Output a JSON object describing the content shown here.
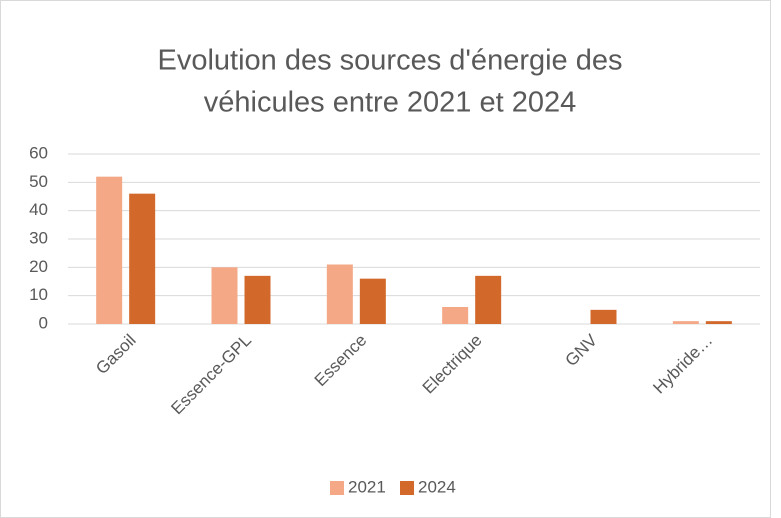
{
  "chart_data": {
    "type": "bar",
    "title": [
      "Evolution des sources d'énergie des",
      "véhicules entre 2021 et 2024"
    ],
    "categories": [
      "Gasoil",
      "Essence-GPL",
      "Essence",
      "Electrique",
      "GNV",
      "Hybride…"
    ],
    "series": [
      {
        "name": "2021",
        "color": "#f4a886",
        "values": [
          52,
          20,
          21,
          6,
          0,
          1
        ]
      },
      {
        "name": "2024",
        "color": "#d2692a",
        "values": [
          46,
          17,
          16,
          17,
          5,
          1
        ]
      }
    ],
    "ylim": [
      0,
      60
    ],
    "yticks": [
      0,
      10,
      20,
      30,
      40,
      50,
      60
    ],
    "grid": true,
    "legend": "bottom"
  }
}
